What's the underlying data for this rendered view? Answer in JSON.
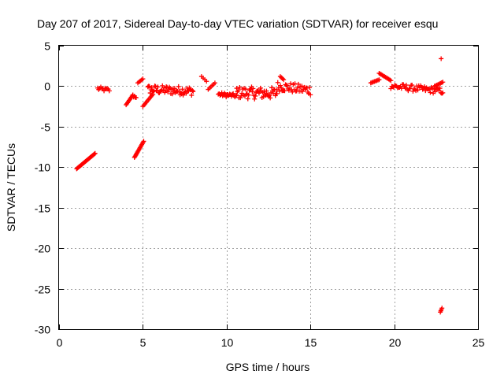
{
  "chart_data": {
    "type": "scatter",
    "title": "Day 207 of 2017, Sidereal Day-to-day VTEC variation (SDTVAR) for receiver esqu",
    "xlabel": "GPS time / hours",
    "ylabel": "SDTVAR / TECUs",
    "xlim": [
      0,
      25
    ],
    "ylim": [
      -30,
      5
    ],
    "xticks": [
      0,
      5,
      10,
      15,
      20,
      25
    ],
    "yticks": [
      5,
      0,
      -5,
      -10,
      -15,
      -20,
      -25,
      -30
    ],
    "xtick_labels": [
      "0",
      "5",
      "10",
      "15",
      "20",
      "25"
    ],
    "ytick_labels": [
      "5",
      "0",
      "-5",
      "-10",
      "-15",
      "-20",
      "-25",
      "-30"
    ],
    "grid": true,
    "marker": "plus",
    "color": "#ff0000",
    "segments": [
      {
        "x": [
          1.05,
          2.15
        ],
        "y": [
          -10.2,
          -8.3
        ],
        "n": 24
      },
      {
        "x": [
          2.3,
          3.0
        ],
        "y": [
          -0.3,
          -0.5
        ],
        "n": 12,
        "jitter": 0.25
      },
      {
        "x": [
          4.0,
          4.4
        ],
        "y": [
          -2.3,
          -1.1
        ],
        "n": 10
      },
      {
        "x": [
          4.4,
          4.6
        ],
        "y": [
          -1.2,
          -1.3
        ],
        "n": 5,
        "jitter": 0.2
      },
      {
        "x": [
          4.5,
          5.05
        ],
        "y": [
          -8.8,
          -6.8
        ],
        "n": 16
      },
      {
        "x": [
          4.7,
          5.0
        ],
        "y": [
          0.4,
          0.9
        ],
        "n": 5
      },
      {
        "x": [
          5.0,
          5.6
        ],
        "y": [
          -2.5,
          -1.0
        ],
        "n": 10
      },
      {
        "x": [
          5.3,
          8.0
        ],
        "y": [
          -0.4,
          -0.6
        ],
        "n": 60,
        "jitter": 0.55
      },
      {
        "x": [
          8.5,
          8.8
        ],
        "y": [
          1.2,
          0.6
        ],
        "n": 4
      },
      {
        "x": [
          8.9,
          9.3
        ],
        "y": [
          -0.4,
          0.4
        ],
        "n": 6
      },
      {
        "x": [
          9.5,
          10.6
        ],
        "y": [
          -1.0,
          -1.2
        ],
        "n": 22,
        "jitter": 0.25
      },
      {
        "x": [
          10.6,
          13.0
        ],
        "y": [
          -0.8,
          -0.9
        ],
        "n": 55,
        "jitter": 0.75
      },
      {
        "x": [
          13.0,
          15.0
        ],
        "y": [
          0.0,
          -0.5
        ],
        "n": 40,
        "jitter": 0.6
      },
      {
        "x": [
          13.2,
          13.4
        ],
        "y": [
          1.2,
          0.8
        ],
        "n": 4
      },
      {
        "x": [
          18.6,
          19.1
        ],
        "y": [
          0.4,
          0.8
        ],
        "n": 8
      },
      {
        "x": [
          19.1,
          19.8
        ],
        "y": [
          1.6,
          0.7
        ],
        "n": 12
      },
      {
        "x": [
          19.8,
          22.9
        ],
        "y": [
          0.0,
          -0.6
        ],
        "n": 55,
        "jitter": 0.4
      },
      {
        "x": [
          22.4,
          22.9
        ],
        "y": [
          0.0,
          0.5
        ],
        "n": 8
      },
      {
        "x": [
          22.8,
          22.8
        ],
        "y": [
          3.4,
          3.4
        ],
        "n": 1
      },
      {
        "x": [
          22.75,
          22.85
        ],
        "y": [
          -27.9,
          -27.4
        ],
        "n": 4
      }
    ]
  }
}
